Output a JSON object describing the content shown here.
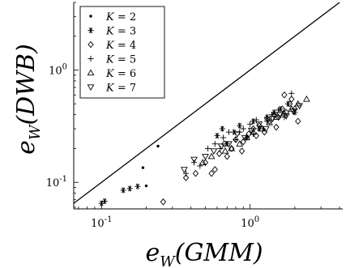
{
  "chart_data": {
    "type": "scatter",
    "title": "",
    "xlabel": "e_W(GMM)",
    "ylabel": "e_W(DWB)",
    "xlabel_parts": {
      "base": "e",
      "sub": "W",
      "rest": "(GMM)"
    },
    "ylabel_parts": {
      "base": "e",
      "sub": "W",
      "rest": "(DWB)"
    },
    "xscale": "log",
    "yscale": "log",
    "xlim": [
      0.065,
      4.2
    ],
    "ylim": [
      0.058,
      4.0
    ],
    "xticks": [
      {
        "value": 0.1,
        "base": "10",
        "exp": "-1"
      },
      {
        "value": 1.0,
        "base": "10",
        "exp": "0"
      }
    ],
    "yticks": [
      {
        "value": 0.1,
        "base": "10",
        "exp": "-1"
      },
      {
        "value": 1.0,
        "base": "10",
        "exp": "0"
      }
    ],
    "grid": false,
    "legend_position": "top-left",
    "reference_line": "y = x",
    "series": [
      {
        "name": "K = 2",
        "label_var": "K",
        "label_val": "2",
        "marker": "dot",
        "x": [
          0.19,
          0.24,
          0.2
        ],
        "y": [
          0.135,
          0.21,
          0.093
        ]
      },
      {
        "name": "K = 3",
        "label_var": "K",
        "label_val": "3",
        "marker": "asterisk",
        "x": [
          0.1,
          0.105,
          0.14,
          0.155,
          0.175,
          0.6,
          0.65,
          0.7,
          0.78,
          0.85,
          0.95,
          1.05,
          1.15,
          1.3,
          1.45,
          1.6,
          1.8,
          2.0
        ],
        "y": [
          0.065,
          0.068,
          0.085,
          0.088,
          0.092,
          0.26,
          0.3,
          0.22,
          0.28,
          0.32,
          0.25,
          0.35,
          0.3,
          0.38,
          0.42,
          0.45,
          0.5,
          0.42
        ]
      },
      {
        "name": "K = 4",
        "label_var": "K",
        "label_val": "4",
        "marker": "diamond",
        "x": [
          0.26,
          0.37,
          0.43,
          0.5,
          0.55,
          0.62,
          0.7,
          0.75,
          0.8,
          0.9,
          0.98,
          1.05,
          1.15,
          1.25,
          1.35,
          1.45,
          1.55,
          1.65,
          1.75,
          1.85,
          1.9,
          2.0,
          2.1,
          0.58,
          0.67,
          0.88,
          1.1,
          1.3,
          1.5,
          1.7
        ],
        "y": [
          0.067,
          0.11,
          0.12,
          0.15,
          0.12,
          0.18,
          0.17,
          0.2,
          0.24,
          0.23,
          0.27,
          0.3,
          0.32,
          0.28,
          0.35,
          0.4,
          0.38,
          0.45,
          0.42,
          0.5,
          0.55,
          0.45,
          0.35,
          0.13,
          0.22,
          0.19,
          0.26,
          0.37,
          0.31,
          0.6
        ]
      },
      {
        "name": "K = 5",
        "label_var": "K",
        "label_val": "5",
        "marker": "plus",
        "x": [
          0.37,
          0.42,
          0.46,
          0.52,
          0.58,
          0.66,
          0.72,
          0.8,
          0.9,
          1.0,
          1.1,
          1.22,
          1.4,
          1.55,
          1.7,
          1.9,
          0.63,
          0.85,
          1.05,
          1.3
        ],
        "y": [
          0.12,
          0.15,
          0.14,
          0.2,
          0.22,
          0.25,
          0.28,
          0.24,
          0.3,
          0.33,
          0.36,
          0.3,
          0.4,
          0.44,
          0.38,
          0.62,
          0.2,
          0.28,
          0.27,
          0.35
        ]
      },
      {
        "name": "K = 6",
        "label_var": "K",
        "label_val": "6",
        "marker": "triangle-up",
        "x": [
          0.48,
          0.55,
          0.68,
          0.75,
          0.85,
          0.95,
          1.05,
          1.2,
          1.35,
          1.5,
          1.7,
          1.9,
          2.1,
          2.4
        ],
        "y": [
          0.15,
          0.17,
          0.19,
          0.2,
          0.22,
          0.25,
          0.28,
          0.3,
          0.34,
          0.38,
          0.41,
          0.45,
          0.5,
          0.55
        ]
      },
      {
        "name": "K = 7",
        "label_var": "K",
        "label_val": "7",
        "marker": "triangle-down",
        "x": [
          0.36,
          0.42,
          0.5,
          0.57,
          0.64,
          0.72,
          0.82,
          0.92,
          1.02,
          1.15,
          1.28,
          1.42,
          1.58,
          1.75,
          1.95,
          2.15
        ],
        "y": [
          0.13,
          0.16,
          0.17,
          0.19,
          0.21,
          0.22,
          0.27,
          0.25,
          0.29,
          0.33,
          0.3,
          0.37,
          0.4,
          0.39,
          0.43,
          0.48
        ]
      }
    ]
  }
}
